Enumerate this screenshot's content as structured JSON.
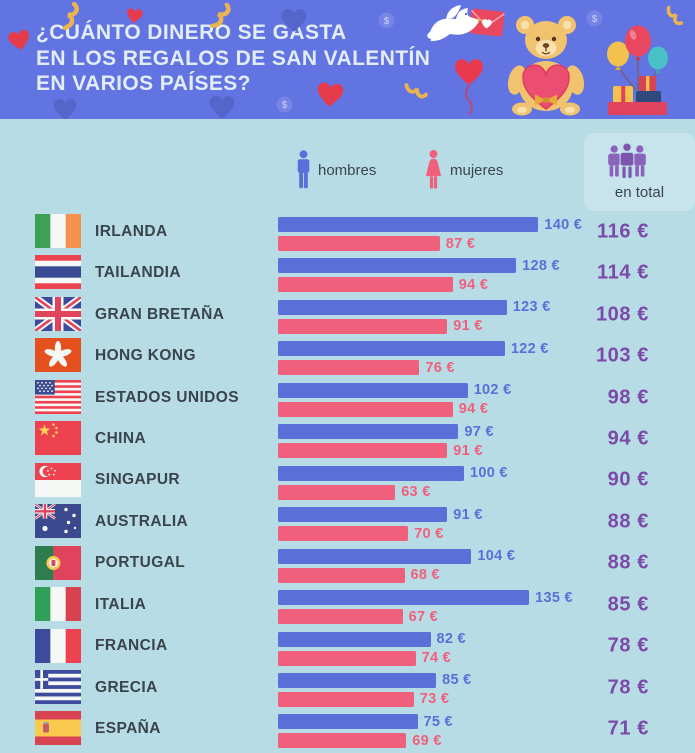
{
  "title": {
    "line1": "¿CUÁNTO DINERO SE GASTA",
    "line2": "EN LOS REGALOS DE SAN VALENTÍN",
    "line3": "EN VARIOS PAÍSES?"
  },
  "legend": {
    "men_label": "hombres",
    "women_label": "mujeres",
    "total_label": "en total"
  },
  "currency_suffix": " €",
  "colors": {
    "header_bg": "#6273e2",
    "page_bg": "#b8dce6",
    "men_bar": "#5c6ed8",
    "women_bar": "#f0607c",
    "total_text": "#7b4aa9",
    "country_text": "#39444d",
    "title_text": "#e3edf8"
  },
  "decorations": [
    "red-heart-icon",
    "gold-streamer-icon",
    "dark-heart-icon",
    "dollar-coin-icon",
    "dove-with-love-letter-icon",
    "heart-balloon-icon",
    "teddy-bear-with-heart-icon",
    "balloons-and-gifts-icon"
  ],
  "chart_data": {
    "type": "bar",
    "title": "¿Cuánto dinero se gasta en los regalos de San Valentín en varios países?",
    "unit": "€",
    "orientation": "horizontal",
    "xlim": [
      0,
      150
    ],
    "grid": false,
    "legend_position": "top",
    "categories": [
      "IRLANDA",
      "TAILANDIA",
      "GRAN BRETAÑA",
      "HONG KONG",
      "ESTADOS UNIDOS",
      "CHINA",
      "SINGAPUR",
      "AUSTRALIA",
      "PORTUGAL",
      "ITALIA",
      "FRANCIA",
      "GRECIA",
      "ESPAÑA"
    ],
    "flags": [
      "ireland",
      "thailand",
      "uk",
      "hongkong",
      "usa",
      "china",
      "singapore",
      "australia",
      "portugal",
      "italy",
      "france",
      "greece",
      "spain"
    ],
    "series": [
      {
        "name": "hombres",
        "values": [
          140,
          128,
          123,
          122,
          102,
          97,
          100,
          91,
          104,
          135,
          82,
          85,
          75
        ]
      },
      {
        "name": "mujeres",
        "values": [
          87,
          94,
          91,
          76,
          94,
          91,
          63,
          70,
          68,
          67,
          74,
          73,
          69
        ]
      },
      {
        "name": "en total",
        "values": [
          116,
          114,
          108,
          103,
          98,
          94,
          90,
          88,
          88,
          85,
          78,
          78,
          71
        ]
      }
    ]
  }
}
